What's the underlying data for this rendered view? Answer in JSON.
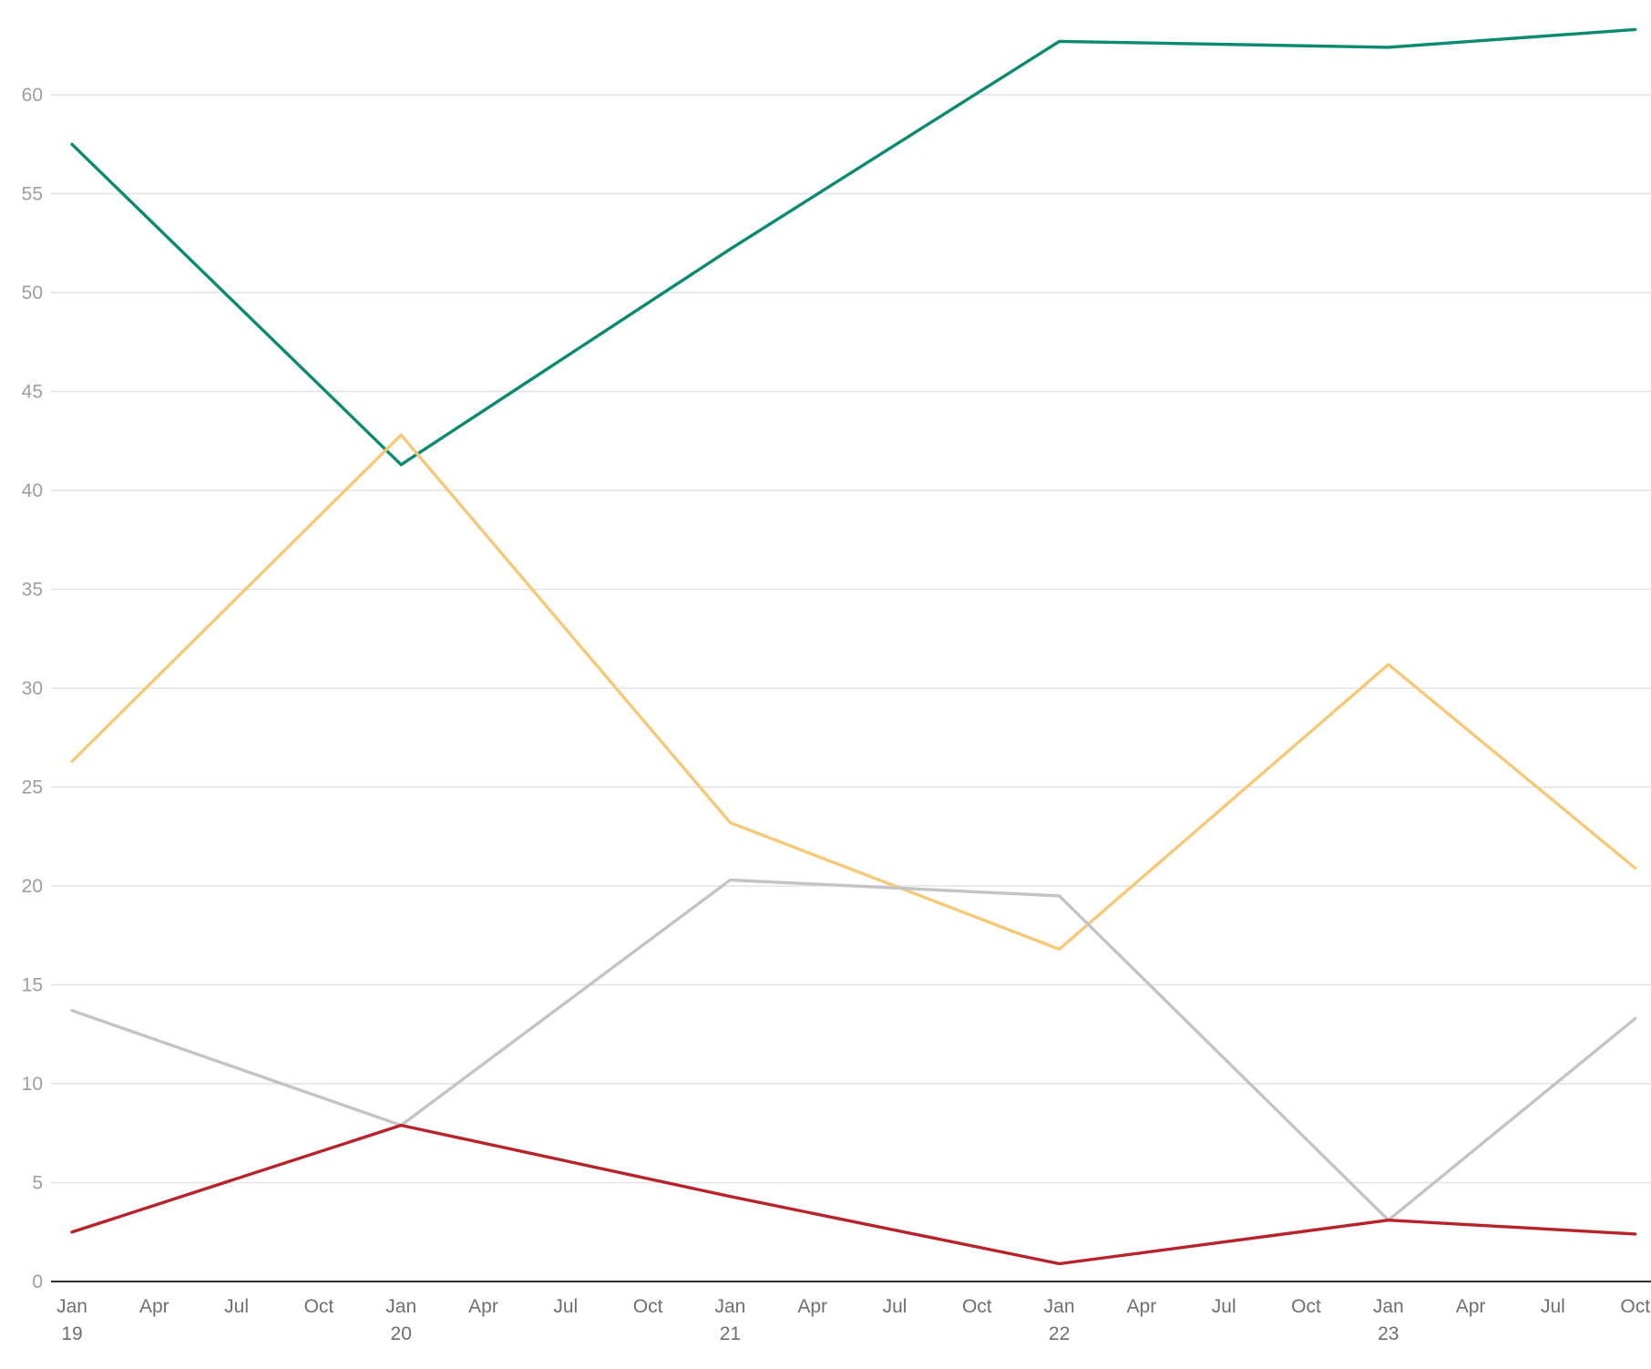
{
  "chart_data": {
    "type": "line",
    "title": "",
    "xlabel": "",
    "ylabel": "",
    "ylim": [
      0,
      63
    ],
    "y_ticks": [
      0,
      5,
      10,
      15,
      20,
      25,
      30,
      35,
      40,
      45,
      50,
      55,
      60
    ],
    "x_range": [
      "2019-01",
      "2023-10"
    ],
    "x_ticks": [
      {
        "month": "Jan",
        "year": "19",
        "date": "2019-01"
      },
      {
        "month": "Apr",
        "year": "",
        "date": "2019-04"
      },
      {
        "month": "Jul",
        "year": "",
        "date": "2019-07"
      },
      {
        "month": "Oct",
        "year": "",
        "date": "2019-10"
      },
      {
        "month": "Jan",
        "year": "20",
        "date": "2020-01"
      },
      {
        "month": "Apr",
        "year": "",
        "date": "2020-04"
      },
      {
        "month": "Jul",
        "year": "",
        "date": "2020-07"
      },
      {
        "month": "Oct",
        "year": "",
        "date": "2020-10"
      },
      {
        "month": "Jan",
        "year": "21",
        "date": "2021-01"
      },
      {
        "month": "Apr",
        "year": "",
        "date": "2021-04"
      },
      {
        "month": "Jul",
        "year": "",
        "date": "2021-07"
      },
      {
        "month": "Oct",
        "year": "",
        "date": "2021-10"
      },
      {
        "month": "Jan",
        "year": "22",
        "date": "2022-01"
      },
      {
        "month": "Apr",
        "year": "",
        "date": "2022-04"
      },
      {
        "month": "Jul",
        "year": "",
        "date": "2022-07"
      },
      {
        "month": "Oct",
        "year": "",
        "date": "2022-10"
      },
      {
        "month": "Jan",
        "year": "23",
        "date": "2023-01"
      },
      {
        "month": "Apr",
        "year": "",
        "date": "2023-04"
      },
      {
        "month": "Jul",
        "year": "",
        "date": "2023-07"
      },
      {
        "month": "Oct",
        "year": "",
        "date": "2023-10"
      }
    ],
    "grid": true,
    "legend": "none",
    "x": [
      "2019-01",
      "2020-01",
      "2021-01",
      "2022-01",
      "2023-01",
      "2023-10"
    ],
    "series": [
      {
        "color": "#0b8a72",
        "values": [
          57.5,
          41.3,
          52.2,
          62.7,
          62.4,
          63.3
        ]
      },
      {
        "color": "#f6c977",
        "values": [
          26.3,
          42.8,
          23.2,
          16.8,
          31.2,
          20.9
        ]
      },
      {
        "color": "#c4c4c4",
        "values": [
          13.7,
          7.9,
          20.3,
          19.5,
          3.1,
          13.3
        ]
      },
      {
        "color": "#b8232b",
        "values": [
          2.5,
          7.9,
          4.3,
          0.9,
          3.1,
          2.4
        ]
      }
    ]
  }
}
